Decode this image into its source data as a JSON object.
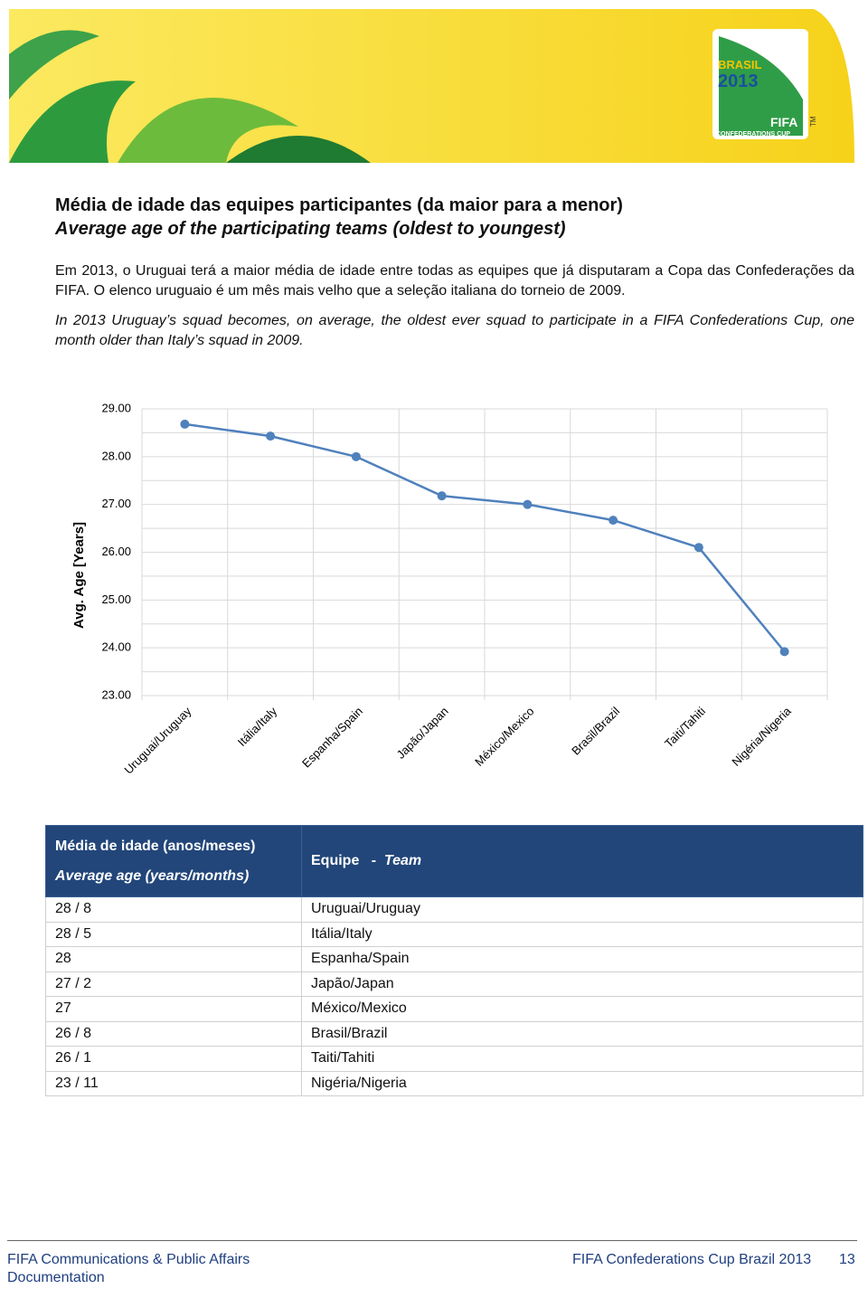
{
  "header": {
    "logo": {
      "line1": "BRASIL",
      "line2": "2013",
      "line3": "FIFA",
      "line4": "CONFEDERATIONS CUP",
      "mark": "TM"
    }
  },
  "title": {
    "pt": "Média de idade das equipes participantes (da maior para a menor)",
    "en": "Average age of the participating teams (oldest to youngest)"
  },
  "intro": {
    "pt": "Em 2013, o Uruguai terá a maior média de idade entre todas as equipes que já disputaram a Copa das Confederações da FIFA. O elenco uruguaio é um mês mais velho que a seleção italiana do torneio de 2009.",
    "en": "In 2013 Uruguay’s squad becomes, on average, the oldest ever squad to participate in a FIFA Confederations Cup, one month older than Italy’s squad in 2009."
  },
  "chart_data": {
    "type": "line",
    "y_label": "Avg. Age [Years]",
    "categories": [
      "Uruguai/Uruguay",
      "Itália/Italy",
      "Espanha/Spain",
      "Japão/Japan",
      "México/Mexico",
      "Brasil/Brazil",
      "Taiti/Tahiti",
      "Nigéria/Nigeria"
    ],
    "values": [
      28.68,
      28.43,
      28.0,
      27.18,
      27.0,
      26.67,
      26.1,
      23.92
    ],
    "color": "#4f81bd",
    "marker": "circle",
    "ylim": [
      23,
      29
    ],
    "yticks": [
      {
        "value": 23,
        "label": "23.00"
      },
      {
        "value": 24,
        "label": "24.00"
      },
      {
        "value": 25,
        "label": "25.00"
      },
      {
        "value": 26,
        "label": "26.00"
      },
      {
        "value": 27,
        "label": "27.00"
      },
      {
        "value": 28,
        "label": "28.00"
      },
      {
        "value": 29,
        "label": "29.00"
      }
    ],
    "minor_yticks": [
      23.5,
      24.5,
      25.5,
      26.5,
      27.5,
      28.5
    ],
    "grid": true
  },
  "table": {
    "header": {
      "col1_pt": "Média de idade (anos/meses)",
      "col1_en": "Average age (years/months)",
      "col2_pt": "Equipe",
      "col2_sep": "-",
      "col2_en": "Team"
    },
    "rows": [
      [
        "28 / 8",
        "Uruguai/Uruguay"
      ],
      [
        "28 / 5",
        "Itália/Italy"
      ],
      [
        "28",
        "Espanha/Spain"
      ],
      [
        "27 / 2",
        "Japão/Japan"
      ],
      [
        "27",
        "México/Mexico"
      ],
      [
        "26 / 8",
        "Brasil/Brazil"
      ],
      [
        "26 / 1",
        "Taiti/Tahiti"
      ],
      [
        "23 / 11",
        "Nigéria/Nigeria"
      ]
    ]
  },
  "footer": {
    "left1": "FIFA Communications & Public Affairs",
    "left2": "Documentation",
    "right": "FIFA Confederations Cup Brazil 2013",
    "page": "13"
  }
}
